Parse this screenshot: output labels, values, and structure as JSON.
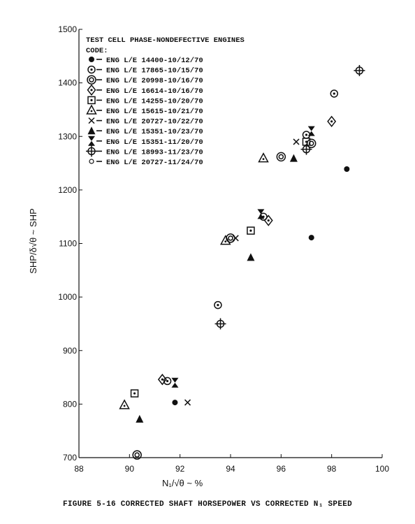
{
  "chart_data": {
    "type": "scatter",
    "xlim": [
      88,
      100
    ],
    "ylim": [
      700,
      1500
    ],
    "x_ticks": [
      "88",
      "90",
      "92",
      "94",
      "96",
      "98",
      "100"
    ],
    "y_ticks": [
      "700",
      "800",
      "900",
      "1000",
      "1100",
      "1200",
      "1300",
      "1400",
      "1500"
    ],
    "xlabel": "N₁/√θ ~ %",
    "ylabel": "SHP/δ√θ ~ SHP",
    "legend_title": "TEST CELL PHASE-NONDEFECTIVE ENGINES",
    "legend_code_label": "CODE:",
    "legend_placement": "top-left",
    "caption": "FIGURE 5-16  CORRECTED SHAFT HORSEPOWER VS CORRECTED N₁ SPEED",
    "series": [
      {
        "name": "ENG L/E 14400-10/12/70",
        "marker": "filled-circle",
        "points": [
          [
            91.8,
            803
          ],
          [
            97.2,
            1111
          ],
          [
            98.6,
            1239
          ]
        ]
      },
      {
        "name": "ENG L/E 17865-10/15/70",
        "marker": "circle-dot",
        "points": [
          [
            91.5,
            843
          ],
          [
            93.5,
            985
          ],
          [
            95.3,
            1150
          ],
          [
            97.0,
            1303
          ],
          [
            98.1,
            1380
          ]
        ]
      },
      {
        "name": "ENG L/E 20998-10/16/70",
        "marker": "double-circle",
        "points": [
          [
            90.3,
            705
          ],
          [
            94.0,
            1110
          ],
          [
            96.0,
            1262
          ],
          [
            97.2,
            1287
          ]
        ]
      },
      {
        "name": "ENG L/E 16614-10/16/70",
        "marker": "diamond-dot",
        "points": [
          [
            91.3,
            846
          ],
          [
            95.5,
            1143
          ],
          [
            98.0,
            1328
          ]
        ]
      },
      {
        "name": "ENG L/E 14255-10/20/70",
        "marker": "square-dot",
        "points": [
          [
            90.2,
            820
          ],
          [
            94.8,
            1124
          ],
          [
            97.0,
            1290
          ]
        ]
      },
      {
        "name": "ENG L/E 15615-10/21/70",
        "marker": "triangle-dot",
        "points": [
          [
            89.8,
            798
          ],
          [
            93.8,
            1105
          ],
          [
            95.3,
            1259
          ]
        ]
      },
      {
        "name": "ENG L/E 20727-10/22/70",
        "marker": "x",
        "points": [
          [
            92.3,
            803
          ],
          [
            94.2,
            1110
          ],
          [
            96.6,
            1290
          ]
        ]
      },
      {
        "name": "ENG L/E 15351-10/23/70",
        "marker": "filled-triangle",
        "points": [
          [
            90.4,
            772
          ],
          [
            94.8,
            1074
          ],
          [
            96.5,
            1259
          ]
        ]
      },
      {
        "name": "ENG L/E 15351-11/20/70",
        "marker": "hourglass",
        "points": [
          [
            91.8,
            840
          ],
          [
            95.2,
            1155
          ],
          [
            97.2,
            1310
          ]
        ]
      },
      {
        "name": "ENG L/E 18993-11/23/70",
        "marker": "circle-cross",
        "points": [
          [
            93.6,
            950
          ],
          [
            97.0,
            1276
          ],
          [
            99.1,
            1423
          ]
        ]
      },
      {
        "name": "ENG L/E 20727-11/24/70",
        "marker": "small-circle",
        "points": []
      }
    ]
  }
}
